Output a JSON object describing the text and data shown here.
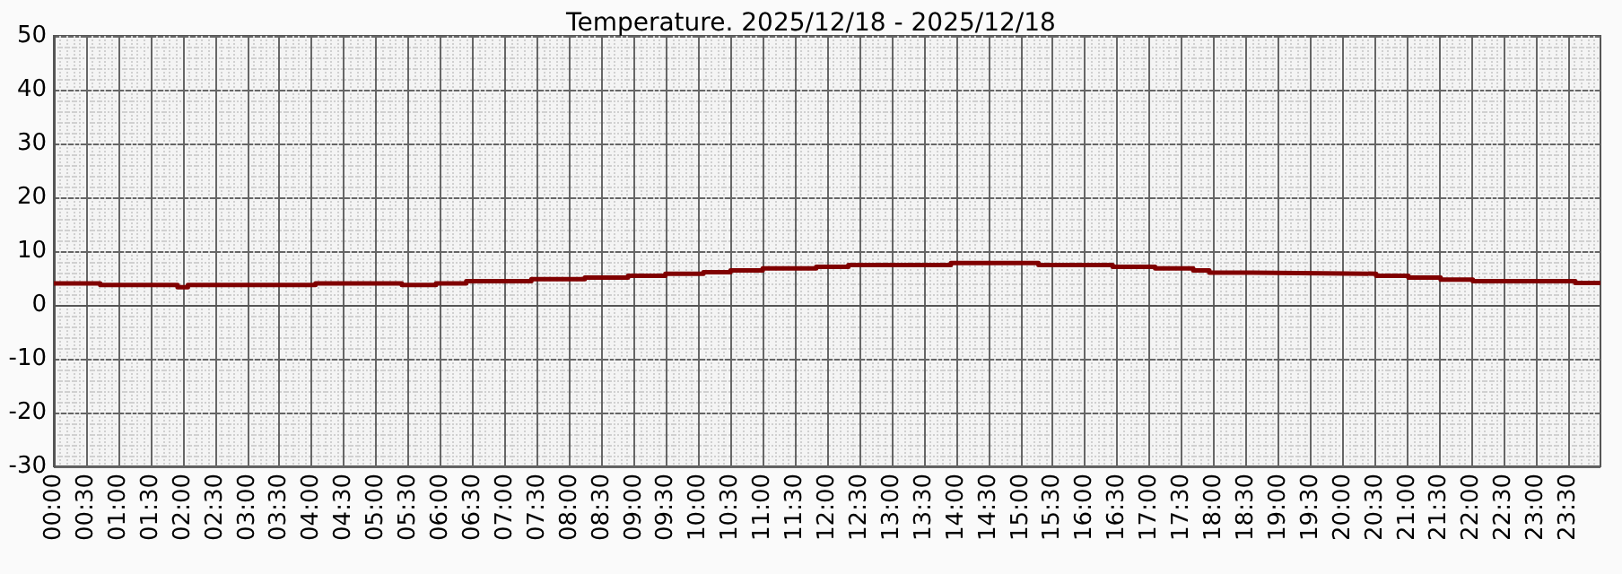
{
  "chart_data": {
    "type": "step",
    "title": "Temperature. 2025/12/18 - 2025/12/18",
    "x": [
      0,
      0.72,
      1.92,
      2.08,
      4.06,
      5.4,
      5.93,
      6.4,
      7.41,
      8.24,
      8.91,
      9.49,
      10.08,
      10.5,
      11.0,
      11.83,
      12.33,
      13.92,
      15.28,
      16.43,
      17.09,
      17.68,
      17.93,
      18.6,
      20.52,
      21.02,
      21.52,
      22.02,
      23.61,
      24.0
    ],
    "series": [
      {
        "color": "#800000",
        "values": [
          4.0,
          3.7,
          3.3,
          3.7,
          4.0,
          3.7,
          4.0,
          4.4,
          4.8,
          5.1,
          5.4,
          5.8,
          6.1,
          6.4,
          6.8,
          7.1,
          7.4,
          7.8,
          7.4,
          7.1,
          6.8,
          6.4,
          6.0,
          5.8,
          5.4,
          5.1,
          4.7,
          4.4,
          4.1,
          4.1
        ]
      }
    ],
    "xlim": [
      0,
      24
    ],
    "xticks": [
      {
        "value": 0,
        "label": "00:00"
      },
      {
        "value": 0.5,
        "label": "00:30"
      },
      {
        "value": 1,
        "label": "01:00"
      },
      {
        "value": 1.5,
        "label": "01:30"
      },
      {
        "value": 2,
        "label": "02:00"
      },
      {
        "value": 2.5,
        "label": "02:30"
      },
      {
        "value": 3,
        "label": "03:00"
      },
      {
        "value": 3.5,
        "label": "03:30"
      },
      {
        "value": 4,
        "label": "04:00"
      },
      {
        "value": 4.5,
        "label": "04:30"
      },
      {
        "value": 5,
        "label": "05:00"
      },
      {
        "value": 5.5,
        "label": "05:30"
      },
      {
        "value": 6,
        "label": "06:00"
      },
      {
        "value": 6.5,
        "label": "06:30"
      },
      {
        "value": 7,
        "label": "07:00"
      },
      {
        "value": 7.5,
        "label": "07:30"
      },
      {
        "value": 8,
        "label": "08:00"
      },
      {
        "value": 8.5,
        "label": "08:30"
      },
      {
        "value": 9,
        "label": "09:00"
      },
      {
        "value": 9.5,
        "label": "09:30"
      },
      {
        "value": 10,
        "label": "10:00"
      },
      {
        "value": 10.5,
        "label": "10:30"
      },
      {
        "value": 11,
        "label": "11:00"
      },
      {
        "value": 11.5,
        "label": "11:30"
      },
      {
        "value": 12,
        "label": "12:00"
      },
      {
        "value": 12.5,
        "label": "12:30"
      },
      {
        "value": 13,
        "label": "13:00"
      },
      {
        "value": 13.5,
        "label": "13:30"
      },
      {
        "value": 14,
        "label": "14:00"
      },
      {
        "value": 14.5,
        "label": "14:30"
      },
      {
        "value": 15,
        "label": "15:00"
      },
      {
        "value": 15.5,
        "label": "15:30"
      },
      {
        "value": 16,
        "label": "16:00"
      },
      {
        "value": 16.5,
        "label": "16:30"
      },
      {
        "value": 17,
        "label": "17:00"
      },
      {
        "value": 17.5,
        "label": "17:30"
      },
      {
        "value": 18,
        "label": "18:00"
      },
      {
        "value": 18.5,
        "label": "18:30"
      },
      {
        "value": 19,
        "label": "19:00"
      },
      {
        "value": 19.5,
        "label": "19:30"
      },
      {
        "value": 20,
        "label": "20:00"
      },
      {
        "value": 20.5,
        "label": "20:30"
      },
      {
        "value": 21,
        "label": "21:00"
      },
      {
        "value": 21.5,
        "label": "21:30"
      },
      {
        "value": 22,
        "label": "22:00"
      },
      {
        "value": 22.5,
        "label": "22:30"
      },
      {
        "value": 23,
        "label": "23:00"
      },
      {
        "value": 23.5,
        "label": "23:30"
      }
    ],
    "ylim": [
      -30,
      50
    ],
    "yticks": [
      -30,
      -20,
      -10,
      0,
      10,
      20,
      30,
      40,
      50
    ],
    "grid": true
  }
}
